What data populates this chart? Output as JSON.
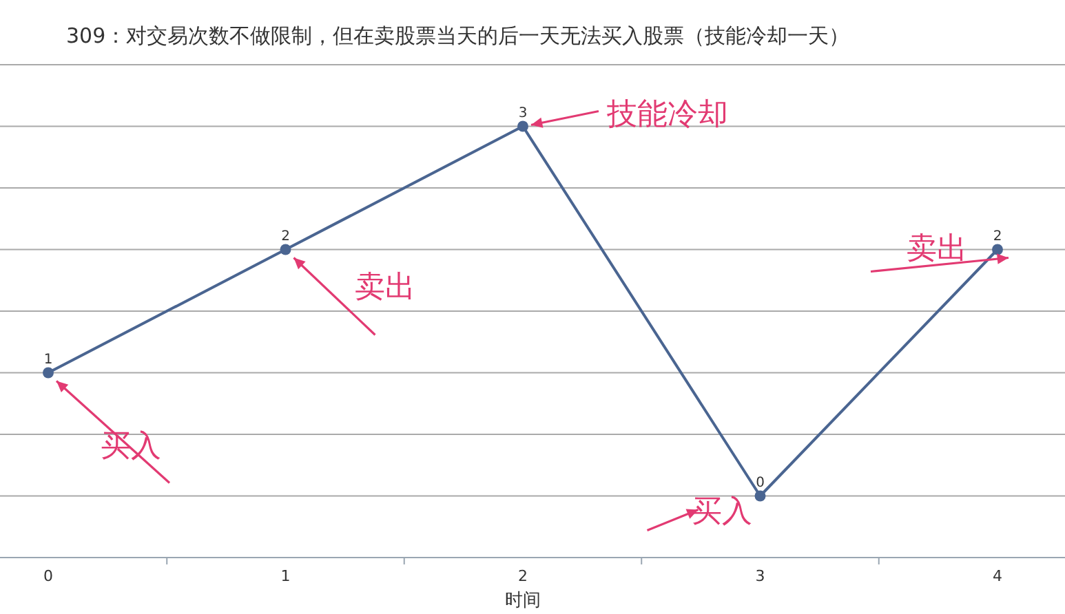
{
  "chart_data": {
    "type": "line",
    "title": "309：对交易次数不做限制，但在卖股票当天的后一天无法买入股票（技能冷却一天）",
    "xlabel": "时间",
    "categories": [
      "0",
      "1",
      "2",
      "3",
      "4"
    ],
    "series": [
      {
        "color": "#4a6591",
        "values": [
          1,
          2,
          3,
          0,
          2
        ]
      }
    ],
    "ylim": [
      -0.5,
      3.5
    ],
    "yticks": [
      {
        "value": -0.5,
        "label": null
      },
      {
        "value": 0,
        "label": null
      },
      {
        "value": 0.5,
        "label": null
      },
      {
        "value": 1,
        "label": null
      },
      {
        "value": 1.5,
        "label": null
      },
      {
        "value": 2,
        "label": null
      },
      {
        "value": 2.5,
        "label": null
      },
      {
        "value": 3,
        "label": null
      },
      {
        "value": 3.5,
        "label": null
      }
    ],
    "grid": "y",
    "marker": "circle",
    "line_style": "solid",
    "data_labels": true,
    "tick_labels": "x",
    "annotations": [
      {
        "text": "买入",
        "x": "0",
        "y": 1
      },
      {
        "text": "卖出",
        "x": "1",
        "y": 2
      },
      {
        "text": "技能冷却",
        "x": "2",
        "y": 3
      },
      {
        "text": "买入",
        "x": "3",
        "y": 0
      },
      {
        "text": "卖出",
        "x": "4",
        "y": 2
      }
    ]
  }
}
